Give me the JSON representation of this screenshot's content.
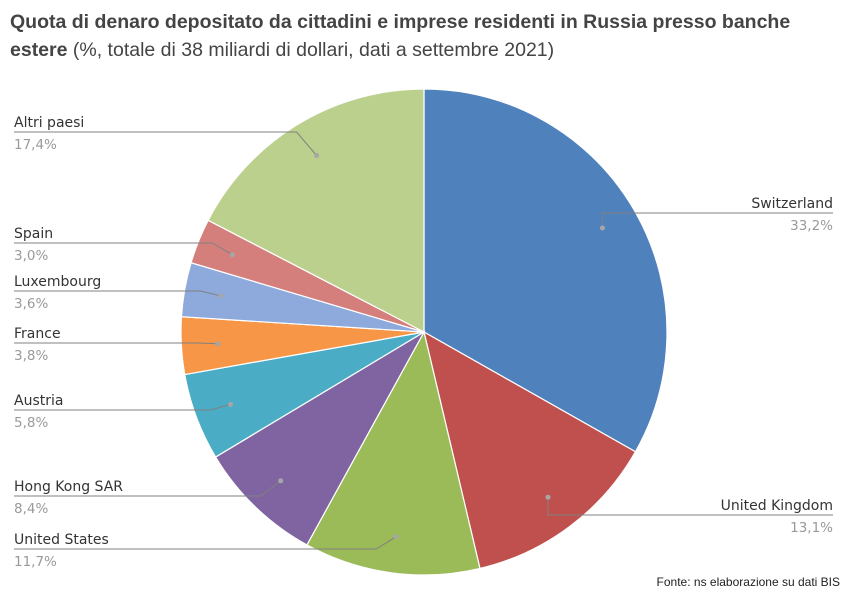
{
  "title": {
    "bold": "Quota di denaro depositato da cittadini e imprese residenti in Russia presso banche estere",
    "normal": "(%, totale di 38 miliardi di dollari, dati a settembre 2021)"
  },
  "source": "Fonte: ns elaborazione su dati BIS",
  "chart_data": {
    "type": "pie",
    "title": "Quota di denaro depositato da cittadini e imprese residenti in Russia presso banche estere (%, totale di 38 miliardi di dollari, dati a settembre 2021)",
    "slices": [
      {
        "name": "Switzerland",
        "value": 33.2,
        "label": "33,2%",
        "color": "#4f81bd",
        "side": "right"
      },
      {
        "name": "United Kingdom",
        "value": 13.1,
        "label": "13,1%",
        "color": "#c0504d",
        "side": "right"
      },
      {
        "name": "United States",
        "value": 11.7,
        "label": "11,7%",
        "color": "#9bbb59",
        "side": "left"
      },
      {
        "name": "Hong Kong SAR",
        "value": 8.4,
        "label": "8,4%",
        "color": "#8064a2",
        "side": "left"
      },
      {
        "name": "Austria",
        "value": 5.8,
        "label": "5,8%",
        "color": "#4bacc6",
        "side": "left"
      },
      {
        "name": "France",
        "value": 3.8,
        "label": "3,8%",
        "color": "#f79646",
        "side": "left"
      },
      {
        "name": "Luxembourg",
        "value": 3.6,
        "label": "3,6%",
        "color": "#8ea9db",
        "side": "left"
      },
      {
        "name": "Spain",
        "value": 3.0,
        "label": "3,0%",
        "color": "#d47f7c",
        "side": "left"
      },
      {
        "name": "Altri paesi",
        "value": 17.4,
        "label": "17,4%",
        "color": "#bcd08e",
        "side": "left"
      }
    ],
    "start": "top",
    "direction": "clockwise"
  }
}
